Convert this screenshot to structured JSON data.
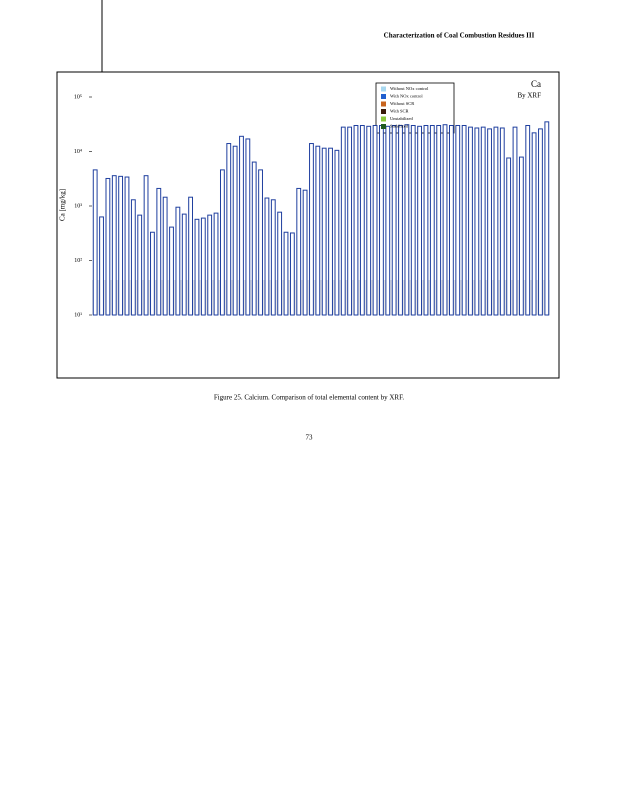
{
  "header": {
    "title": "Characterization of Coal Combustion Residues III"
  },
  "figure": {
    "chart_data": {
      "type": "bar",
      "title": "Ca",
      "subtitle": "By XRF",
      "y_label": "Ca [mg/kg]",
      "log_scale": true,
      "ylim": [
        10,
        100000
      ],
      "yticks": [
        {
          "value": 10,
          "label": "10¹"
        },
        {
          "value": 100,
          "label": "10²"
        },
        {
          "value": 1000,
          "label": "10³"
        },
        {
          "value": 10000,
          "label": "10⁴"
        },
        {
          "value": 100000,
          "label": "10⁵"
        }
      ],
      "color": "#1f3f9f",
      "values": [
        4600,
        630,
        3200,
        3600,
        3500,
        3400,
        1300,
        680,
        3600,
        330,
        2100,
        1450,
        410,
        950,
        710,
        1450,
        570,
        600,
        680,
        740,
        4600,
        14000,
        12500,
        19000,
        17000,
        6400,
        4600,
        1400,
        1300,
        770,
        330,
        320,
        2100,
        1950,
        14000,
        12500,
        11500,
        11500,
        10500,
        28000,
        28000,
        30000,
        30000,
        29000,
        30000,
        30000,
        29000,
        30000,
        30000,
        31000,
        30000,
        29000,
        30000,
        30000,
        30000,
        31000,
        30000,
        30000,
        30000,
        28000,
        27000,
        28000,
        26000,
        28000,
        27000,
        7600,
        28000,
        7900,
        30000,
        22000,
        26000,
        35000
      ],
      "legend": [
        {
          "name": "Without NOx control",
          "color": "#a8d8f0"
        },
        {
          "name": "With NOx control",
          "color": "#1f5fcf"
        },
        {
          "name": "Without SCR",
          "color": "#c8641e"
        },
        {
          "name": "With SCR",
          "color": "#3a1a0a"
        },
        {
          "name": "Unstabilized",
          "color": "#8cc83c"
        },
        {
          "name": "Stabilized",
          "color": "#1e5a1e"
        }
      ]
    },
    "caption": "Figure 25. Calcium. Comparison of total elemental content by XRF."
  },
  "page_number": "73"
}
